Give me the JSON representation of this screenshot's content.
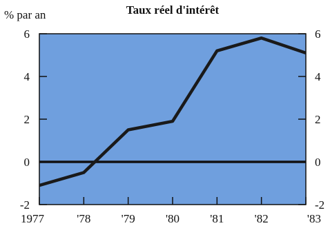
{
  "chart_data": {
    "type": "line",
    "title": "Taux réel d'intérêt",
    "ylabel": "% par an",
    "xlabel": "",
    "x": [
      1977,
      1978,
      1979,
      1980,
      1981,
      1982,
      1983
    ],
    "x_tick_labels": [
      "1977",
      "'78",
      "'79",
      "'80",
      "'81",
      "'82",
      "'83"
    ],
    "y_ticks": [
      "-2",
      "0",
      "2",
      "4",
      "6"
    ],
    "y_tick_values": [
      -2,
      0,
      2,
      4,
      6
    ],
    "ylim": [
      -2,
      6
    ],
    "grid": false,
    "legend": "none",
    "series": [
      {
        "x": [
          1977,
          1978,
          1979,
          1980,
          1981,
          1982,
          1983
        ],
        "values": [
          -1.1,
          -0.5,
          1.5,
          1.9,
          5.2,
          5.8,
          5.1
        ]
      }
    ],
    "colors": {
      "plot_background": "#6f9fde",
      "line": "#1a1a1a",
      "zero_line": "#111111",
      "axis": "#111111"
    }
  }
}
